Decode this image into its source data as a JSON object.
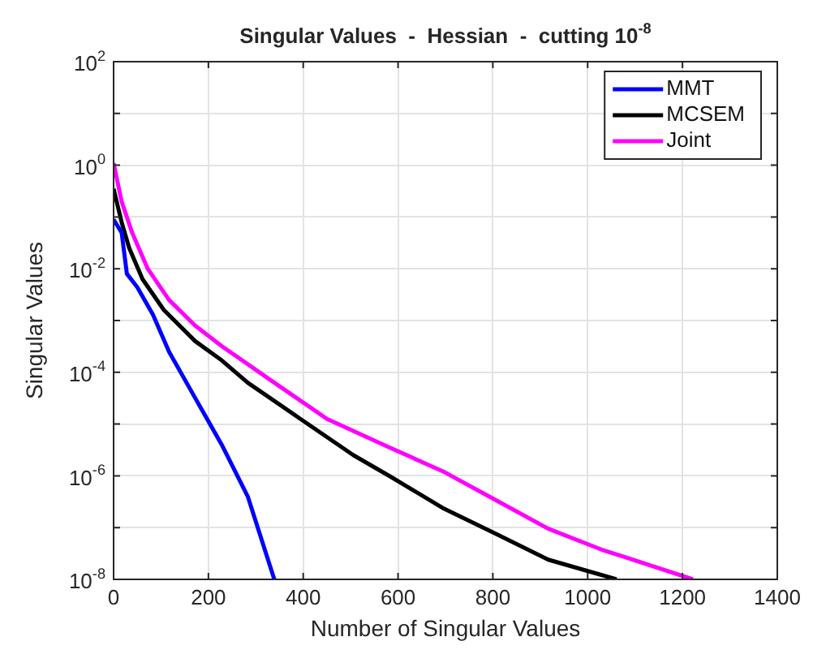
{
  "chart_data": {
    "type": "line",
    "title": "Singular Values  -  Hessian  -  cutting 10$^{-8}$",
    "xlabel": "Number of Singular Values",
    "ylabel": "Singular Values",
    "log": "y",
    "grid": true,
    "legend": "top right",
    "marker": "none",
    "line_style": "solid",
    "xlim": [
      0,
      1400
    ],
    "xticks": [
      0,
      200,
      400,
      600,
      800,
      1000,
      1200,
      1400
    ],
    "ylim": [
      1e-08,
      100
    ],
    "yticks": [
      {
        "value": 1e-08,
        "label": "10$^{-8}$"
      },
      {
        "value": 1e-07,
        "label": null
      },
      {
        "value": 1e-06,
        "label": "10$^{-6}$"
      },
      {
        "value": 1e-05,
        "label": null
      },
      {
        "value": 0.0001,
        "label": "10$^{-4}$"
      },
      {
        "value": 0.001,
        "label": null
      },
      {
        "value": 0.01,
        "label": "10$^{-2}$"
      },
      {
        "value": 0.1,
        "label": null
      },
      {
        "value": 1,
        "label": "10$^{0}$"
      },
      {
        "value": 10,
        "label": null
      },
      {
        "value": 100,
        "label": "10$^{2}$"
      }
    ],
    "series": [
      {
        "name": "MMT",
        "color": "#0000ff",
        "x": [
          0,
          17,
          28,
          50,
          83,
          117,
          172,
          228,
          283,
          339
        ],
        "values": [
          0.089,
          0.05,
          0.008,
          0.0044,
          0.0013,
          0.00025,
          3.2e-05,
          4e-06,
          4e-07,
          1e-08
        ]
      },
      {
        "name": "MCSEM",
        "color": "#000000",
        "x": [
          0,
          17,
          33,
          61,
          106,
          172,
          228,
          283,
          394,
          506,
          583,
          694,
          806,
          917,
          1061
        ],
        "values": [
          0.35,
          0.079,
          0.025,
          0.0063,
          0.0016,
          0.0004,
          0.00017,
          6.3e-05,
          1.26e-05,
          2.5e-06,
          9.8e-07,
          2.4e-07,
          7.6e-08,
          2.4e-08,
          1e-08
        ]
      },
      {
        "name": "Joint",
        "color": "#ff00ff",
        "x": [
          0,
          17,
          39,
          72,
          117,
          172,
          228,
          339,
          450,
          583,
          694,
          806,
          917,
          1028,
          1222
        ],
        "values": [
          1.1,
          0.2,
          0.05,
          0.01,
          0.0025,
          0.0008,
          0.00032,
          6.3e-05,
          1.26e-05,
          3.5e-06,
          1.23e-06,
          3.4e-07,
          9.5e-08,
          3.8e-08,
          1e-08
        ]
      }
    ]
  }
}
